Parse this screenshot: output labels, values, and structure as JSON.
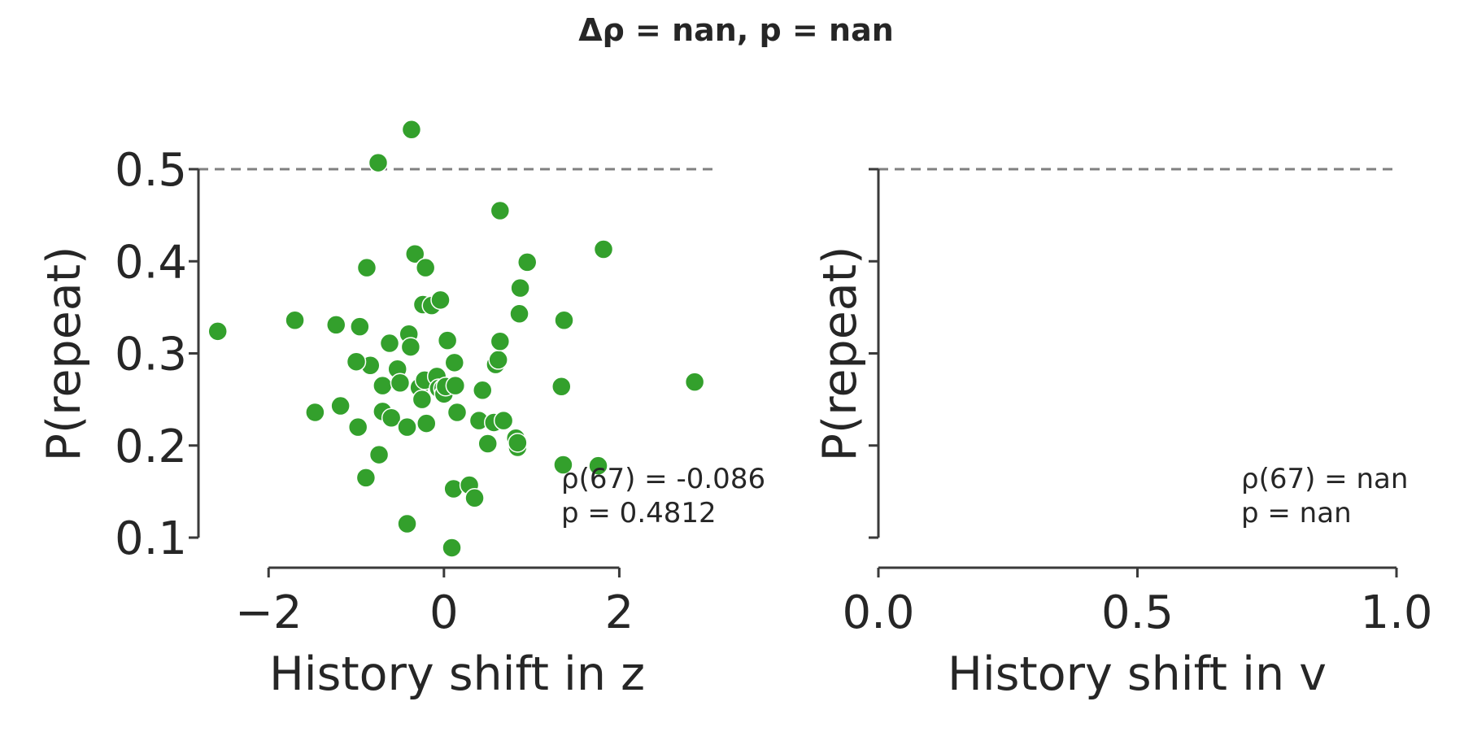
{
  "figure": {
    "suptitle": "Δρ = nan, p = nan"
  },
  "colors": {
    "points": "#33a02c",
    "reference_line": "#808080",
    "axes": "#3a3a3a"
  },
  "chart_data": [
    {
      "type": "scatter",
      "xlabel": "History shift in z",
      "ylabel": "P(repeat)",
      "xlim": [
        -2.8,
        3.1
      ],
      "ylim": [
        0.1,
        0.5
      ],
      "xticks": [
        {
          "v": -2,
          "label": "−2"
        },
        {
          "v": 0,
          "label": "0"
        },
        {
          "v": 2,
          "label": "2"
        }
      ],
      "yticks": [
        {
          "v": 0.1,
          "label": "0.1"
        },
        {
          "v": 0.2,
          "label": "0.2"
        },
        {
          "v": 0.3,
          "label": "0.3"
        },
        {
          "v": 0.4,
          "label": "0.4"
        },
        {
          "v": 0.5,
          "label": "0.5"
        }
      ],
      "reference_line_y": 0.5,
      "grid": false,
      "stats": {
        "line1": "ρ(67) = -0.086",
        "line2": "p = 0.4812"
      },
      "points": [
        {
          "x": -2.58,
          "y": 0.324
        },
        {
          "x": -1.7,
          "y": 0.336
        },
        {
          "x": -1.47,
          "y": 0.236
        },
        {
          "x": -1.23,
          "y": 0.331
        },
        {
          "x": -1.18,
          "y": 0.243
        },
        {
          "x": -0.98,
          "y": 0.22
        },
        {
          "x": -0.96,
          "y": 0.329
        },
        {
          "x": -0.89,
          "y": 0.165
        },
        {
          "x": -0.88,
          "y": 0.393
        },
        {
          "x": -0.84,
          "y": 0.287
        },
        {
          "x": -1.0,
          "y": 0.291
        },
        {
          "x": -0.74,
          "y": 0.19
        },
        {
          "x": -0.75,
          "y": 0.507
        },
        {
          "x": -0.7,
          "y": 0.265
        },
        {
          "x": -0.7,
          "y": 0.237
        },
        {
          "x": -0.62,
          "y": 0.311
        },
        {
          "x": -0.6,
          "y": 0.23
        },
        {
          "x": -0.53,
          "y": 0.283
        },
        {
          "x": -0.5,
          "y": 0.268
        },
        {
          "x": -0.42,
          "y": 0.115
        },
        {
          "x": -0.42,
          "y": 0.22
        },
        {
          "x": -0.4,
          "y": 0.321
        },
        {
          "x": -0.38,
          "y": 0.307
        },
        {
          "x": -0.37,
          "y": 0.543
        },
        {
          "x": -0.33,
          "y": 0.408
        },
        {
          "x": -0.28,
          "y": 0.263
        },
        {
          "x": -0.25,
          "y": 0.25
        },
        {
          "x": -0.24,
          "y": 0.353
        },
        {
          "x": -0.22,
          "y": 0.271
        },
        {
          "x": -0.21,
          "y": 0.393
        },
        {
          "x": -0.2,
          "y": 0.224
        },
        {
          "x": -0.14,
          "y": 0.352
        },
        {
          "x": -0.08,
          "y": 0.275
        },
        {
          "x": -0.06,
          "y": 0.262
        },
        {
          "x": -0.04,
          "y": 0.358
        },
        {
          "x": -0.01,
          "y": 0.262
        },
        {
          "x": 0.0,
          "y": 0.256
        },
        {
          "x": 0.02,
          "y": 0.264
        },
        {
          "x": 0.04,
          "y": 0.314
        },
        {
          "x": 0.09,
          "y": 0.089
        },
        {
          "x": 0.11,
          "y": 0.153
        },
        {
          "x": 0.12,
          "y": 0.29
        },
        {
          "x": 0.13,
          "y": 0.265
        },
        {
          "x": 0.15,
          "y": 0.236
        },
        {
          "x": 0.29,
          "y": 0.157
        },
        {
          "x": 0.35,
          "y": 0.143
        },
        {
          "x": 0.4,
          "y": 0.227
        },
        {
          "x": 0.44,
          "y": 0.26
        },
        {
          "x": 0.5,
          "y": 0.202
        },
        {
          "x": 0.57,
          "y": 0.225
        },
        {
          "x": 0.59,
          "y": 0.288
        },
        {
          "x": 0.62,
          "y": 0.293
        },
        {
          "x": 0.64,
          "y": 0.313
        },
        {
          "x": 0.64,
          "y": 0.455
        },
        {
          "x": 0.68,
          "y": 0.227
        },
        {
          "x": 0.82,
          "y": 0.208
        },
        {
          "x": 0.84,
          "y": 0.198
        },
        {
          "x": 0.86,
          "y": 0.343
        },
        {
          "x": 0.87,
          "y": 0.371
        },
        {
          "x": 0.95,
          "y": 0.399
        },
        {
          "x": 1.34,
          "y": 0.264
        },
        {
          "x": 1.36,
          "y": 0.179
        },
        {
          "x": 1.37,
          "y": 0.336
        },
        {
          "x": 1.76,
          "y": 0.178
        },
        {
          "x": 1.82,
          "y": 0.413
        },
        {
          "x": 2.86,
          "y": 0.269
        },
        {
          "x": 0.84,
          "y": 0.203
        }
      ]
    },
    {
      "type": "scatter",
      "xlabel": "History shift in v",
      "ylabel": "P(repeat)",
      "xlim": [
        0.0,
        1.0
      ],
      "ylim": [
        0.1,
        0.5
      ],
      "xticks": [
        {
          "v": 0.0,
          "label": "0.0"
        },
        {
          "v": 0.5,
          "label": "0.5"
        },
        {
          "v": 1.0,
          "label": "1.0"
        }
      ],
      "yticks": [
        {
          "v": 0.1,
          "label": ""
        },
        {
          "v": 0.2,
          "label": ""
        },
        {
          "v": 0.3,
          "label": ""
        },
        {
          "v": 0.4,
          "label": ""
        },
        {
          "v": 0.5,
          "label": ""
        }
      ],
      "reference_line_y": 0.5,
      "grid": false,
      "stats": {
        "line1": "ρ(67) = nan",
        "line2": "p = nan"
      },
      "points": []
    }
  ]
}
